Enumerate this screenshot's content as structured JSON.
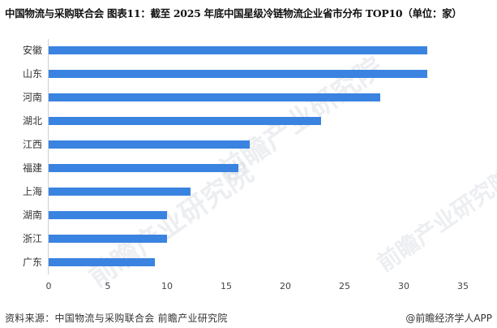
{
  "title": "中国物流与采购联合会  图表11：截至 2025 年底中国星级冷链物流企业省市分布 TOP10（单位：家）",
  "footer": {
    "source": "资料来源：中国物流与采购联合会 前瞻产业研究院",
    "credit": "@前瞻经济学人APP"
  },
  "watermark": "前瞻产业研究院",
  "colors": {
    "bar": "#3a83e0",
    "axis": "#d0d0d0"
  },
  "chart_data": {
    "type": "bar",
    "orientation": "horizontal",
    "title": "中国物流与采购联合会  图表11：截至 2025 年底中国星级冷链物流企业省市分布 TOP10（单位：家）",
    "categories": [
      "安徽",
      "山东",
      "河南",
      "湖北",
      "江西",
      "福建",
      "上海",
      "湖南",
      "浙江",
      "广东"
    ],
    "values": [
      32,
      32,
      28,
      23,
      17,
      16,
      12,
      10,
      10,
      9
    ],
    "xlabel": "",
    "ylabel": "",
    "xlim": [
      0,
      35
    ],
    "xticks": [
      "0",
      "5",
      "10",
      "15",
      "20",
      "25",
      "30",
      "35"
    ],
    "grid": false,
    "legend": null,
    "unit": "家"
  }
}
